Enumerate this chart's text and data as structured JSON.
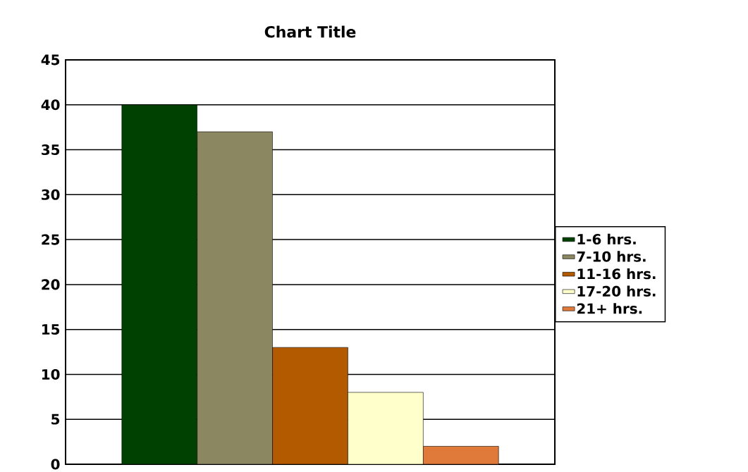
{
  "chart_data": {
    "type": "bar",
    "title": "Chart Title",
    "categories": [
      null
    ],
    "series": [
      {
        "name": "1-6 hrs.",
        "color": "#004000",
        "values": [
          40
        ]
      },
      {
        "name": "7-10 hrs.",
        "color": "#8b8760",
        "values": [
          37
        ]
      },
      {
        "name": "11-16 hrs.",
        "color": "#b35900",
        "values": [
          13
        ]
      },
      {
        "name": "17-20 hrs.",
        "color": "#ffffcc",
        "values": [
          8
        ]
      },
      {
        "name": "21+ hrs.",
        "color": "#e07a3a",
        "values": [
          2
        ]
      }
    ],
    "ylim": [
      0,
      45
    ],
    "yticks": [
      0,
      5,
      10,
      15,
      20,
      25,
      30,
      35,
      40,
      45
    ],
    "grid": "y",
    "legend": "right"
  }
}
